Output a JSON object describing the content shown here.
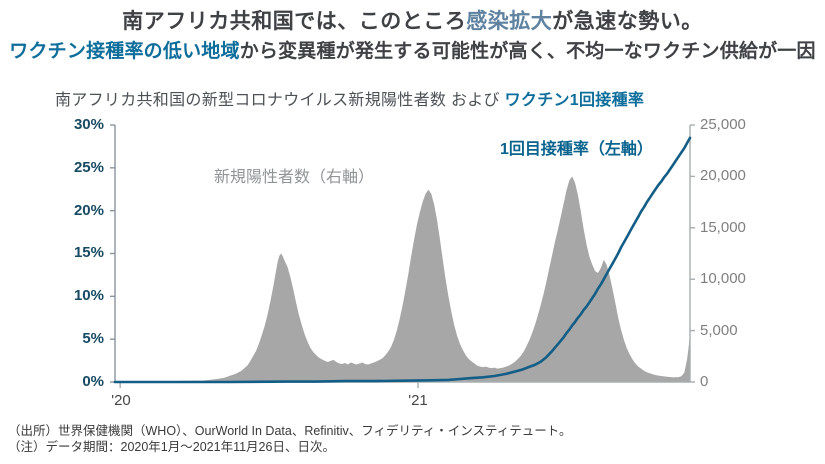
{
  "headline1": {
    "pre": "南アフリカ共和国では、このところ",
    "highlight": "感染拡大",
    "post": "が急速な勢い。"
  },
  "headline2": {
    "highlight": "ワクチン接種率の低い地域",
    "post": "から変異種が発生する可能性が高く、不均一なワクチン供給が一因"
  },
  "chart": {
    "title_main": "南アフリカ共和国の新型コロナウイルス新規陽性者数 および ",
    "title_highlight": "ワクチン1回接種率",
    "annotation_cases": "新規陽性者数（右軸）",
    "annotation_vaccine": "1回目接種率（左軸）"
  },
  "chart_data": {
    "type": "combo",
    "title": "南アフリカ共和国の新型コロナウイルス新規陽性者数 および ワクチン1回接種率",
    "x_note": "t=0 は2020年1月、t=1 は2021年11月26日（日次データ）",
    "x": {
      "ticks": [
        {
          "t": 0.009,
          "label": "'20"
        },
        {
          "t": 0.527,
          "label": "'21"
        }
      ]
    },
    "left_axis": {
      "min": 0,
      "max": 30,
      "ticks": [
        "30%",
        "25%",
        "20%",
        "15%",
        "10%",
        "5%",
        "0%"
      ]
    },
    "right_axis": {
      "min": 0,
      "max": 25000,
      "ticks": [
        "25,000",
        "20,000",
        "15,000",
        "10,000",
        "5,000",
        "0"
      ]
    },
    "colors": {
      "area": "#A7A7A7",
      "line": "#135E86",
      "left_axis": "#8A959E",
      "right_axis": "#A9ADB0",
      "baseline": "#A9ADB0"
    },
    "series": [
      {
        "name": "新規陽性者数（右軸）",
        "type": "area",
        "axis": "right",
        "color": "#A7A7A7",
        "points": [
          [
            0,
            0
          ],
          [
            0.02,
            0
          ],
          [
            0.04,
            0
          ],
          [
            0.06,
            10
          ],
          [
            0.08,
            30
          ],
          [
            0.1,
            60
          ],
          [
            0.11,
            90
          ],
          [
            0.12,
            130
          ],
          [
            0.13,
            110
          ],
          [
            0.14,
            150
          ],
          [
            0.15,
            130
          ],
          [
            0.16,
            180
          ],
          [
            0.17,
            240
          ],
          [
            0.18,
            320
          ],
          [
            0.19,
            420
          ],
          [
            0.2,
            600
          ],
          [
            0.21,
            800
          ],
          [
            0.215,
            950
          ],
          [
            0.22,
            1100
          ],
          [
            0.225,
            1350
          ],
          [
            0.23,
            1600
          ],
          [
            0.235,
            2000
          ],
          [
            0.24,
            2500
          ],
          [
            0.245,
            3000
          ],
          [
            0.25,
            3700
          ],
          [
            0.255,
            4500
          ],
          [
            0.26,
            5400
          ],
          [
            0.265,
            6500
          ],
          [
            0.27,
            7800
          ],
          [
            0.275,
            9200
          ],
          [
            0.28,
            10800
          ],
          [
            0.283,
            11700
          ],
          [
            0.286,
            12300
          ],
          [
            0.289,
            12500
          ],
          [
            0.292,
            12200
          ],
          [
            0.295,
            11800
          ],
          [
            0.3,
            11200
          ],
          [
            0.305,
            10200
          ],
          [
            0.31,
            9000
          ],
          [
            0.315,
            7700
          ],
          [
            0.32,
            6500
          ],
          [
            0.325,
            5500
          ],
          [
            0.33,
            4600
          ],
          [
            0.335,
            3900
          ],
          [
            0.34,
            3300
          ],
          [
            0.345,
            2900
          ],
          [
            0.35,
            2600
          ],
          [
            0.355,
            2350
          ],
          [
            0.36,
            2200
          ],
          [
            0.365,
            2050
          ],
          [
            0.37,
            1950
          ],
          [
            0.375,
            2050
          ],
          [
            0.38,
            2150
          ],
          [
            0.385,
            1950
          ],
          [
            0.39,
            1800
          ],
          [
            0.395,
            1750
          ],
          [
            0.4,
            1850
          ],
          [
            0.405,
            1700
          ],
          [
            0.41,
            1900
          ],
          [
            0.415,
            1800
          ],
          [
            0.42,
            1700
          ],
          [
            0.425,
            1800
          ],
          [
            0.43,
            1900
          ],
          [
            0.435,
            1750
          ],
          [
            0.44,
            1700
          ],
          [
            0.445,
            1800
          ],
          [
            0.45,
            1900
          ],
          [
            0.455,
            2000
          ],
          [
            0.46,
            2150
          ],
          [
            0.465,
            2300
          ],
          [
            0.47,
            2600
          ],
          [
            0.475,
            2950
          ],
          [
            0.48,
            3400
          ],
          [
            0.485,
            4100
          ],
          [
            0.49,
            5000
          ],
          [
            0.495,
            6100
          ],
          [
            0.5,
            7400
          ],
          [
            0.505,
            8900
          ],
          [
            0.51,
            10500
          ],
          [
            0.515,
            12200
          ],
          [
            0.52,
            13800
          ],
          [
            0.525,
            15300
          ],
          [
            0.53,
            16500
          ],
          [
            0.535,
            17500
          ],
          [
            0.54,
            18300
          ],
          [
            0.545,
            18700
          ],
          [
            0.55,
            18300
          ],
          [
            0.555,
            17300
          ],
          [
            0.56,
            15800
          ],
          [
            0.565,
            13900
          ],
          [
            0.57,
            11900
          ],
          [
            0.575,
            10000
          ],
          [
            0.58,
            8300
          ],
          [
            0.585,
            6800
          ],
          [
            0.59,
            5500
          ],
          [
            0.595,
            4500
          ],
          [
            0.6,
            3700
          ],
          [
            0.605,
            3100
          ],
          [
            0.61,
            2600
          ],
          [
            0.615,
            2250
          ],
          [
            0.62,
            2000
          ],
          [
            0.625,
            1800
          ],
          [
            0.63,
            1600
          ],
          [
            0.635,
            1500
          ],
          [
            0.64,
            1450
          ],
          [
            0.645,
            1500
          ],
          [
            0.65,
            1400
          ],
          [
            0.655,
            1350
          ],
          [
            0.66,
            1400
          ],
          [
            0.665,
            1300
          ],
          [
            0.67,
            1350
          ],
          [
            0.675,
            1400
          ],
          [
            0.68,
            1500
          ],
          [
            0.685,
            1600
          ],
          [
            0.69,
            1750
          ],
          [
            0.695,
            1950
          ],
          [
            0.7,
            2200
          ],
          [
            0.705,
            2500
          ],
          [
            0.71,
            2900
          ],
          [
            0.715,
            3400
          ],
          [
            0.72,
            4000
          ],
          [
            0.725,
            4700
          ],
          [
            0.73,
            5500
          ],
          [
            0.735,
            6400
          ],
          [
            0.74,
            7400
          ],
          [
            0.745,
            8500
          ],
          [
            0.75,
            9700
          ],
          [
            0.755,
            11000
          ],
          [
            0.76,
            12300
          ],
          [
            0.765,
            13600
          ],
          [
            0.77,
            14800
          ],
          [
            0.775,
            16000
          ],
          [
            0.78,
            17300
          ],
          [
            0.785,
            18600
          ],
          [
            0.79,
            19600
          ],
          [
            0.795,
            20000
          ],
          [
            0.8,
            19400
          ],
          [
            0.805,
            18200
          ],
          [
            0.81,
            16600
          ],
          [
            0.815,
            14900
          ],
          [
            0.82,
            13400
          ],
          [
            0.825,
            12200
          ],
          [
            0.83,
            11400
          ],
          [
            0.835,
            10800
          ],
          [
            0.84,
            10600
          ],
          [
            0.845,
            11100
          ],
          [
            0.85,
            11900
          ],
          [
            0.855,
            11400
          ],
          [
            0.86,
            10400
          ],
          [
            0.865,
            9100
          ],
          [
            0.87,
            7700
          ],
          [
            0.875,
            6300
          ],
          [
            0.88,
            5100
          ],
          [
            0.885,
            4100
          ],
          [
            0.89,
            3300
          ],
          [
            0.895,
            2700
          ],
          [
            0.9,
            2200
          ],
          [
            0.905,
            1800
          ],
          [
            0.91,
            1500
          ],
          [
            0.915,
            1300
          ],
          [
            0.92,
            1100
          ],
          [
            0.925,
            950
          ],
          [
            0.93,
            850
          ],
          [
            0.935,
            750
          ],
          [
            0.94,
            680
          ],
          [
            0.945,
            620
          ],
          [
            0.95,
            580
          ],
          [
            0.955,
            540
          ],
          [
            0.96,
            510
          ],
          [
            0.965,
            490
          ],
          [
            0.97,
            470
          ],
          [
            0.975,
            460
          ],
          [
            0.98,
            480
          ],
          [
            0.985,
            560
          ],
          [
            0.99,
            900
          ],
          [
            0.995,
            2200
          ],
          [
            1,
            4500
          ]
        ]
      },
      {
        "name": "1回目接種率（左軸）",
        "type": "line",
        "axis": "left",
        "color": "#135E86",
        "points": [
          [
            0,
            0
          ],
          [
            0.1,
            0
          ],
          [
            0.2,
            0
          ],
          [
            0.3,
            0.05
          ],
          [
            0.35,
            0.05
          ],
          [
            0.4,
            0.1
          ],
          [
            0.45,
            0.1
          ],
          [
            0.5,
            0.15
          ],
          [
            0.55,
            0.2
          ],
          [
            0.58,
            0.25
          ],
          [
            0.6,
            0.35
          ],
          [
            0.62,
            0.45
          ],
          [
            0.64,
            0.55
          ],
          [
            0.66,
            0.7
          ],
          [
            0.68,
            0.95
          ],
          [
            0.7,
            1.3
          ],
          [
            0.71,
            1.5
          ],
          [
            0.72,
            1.75
          ],
          [
            0.73,
            2.0
          ],
          [
            0.74,
            2.35
          ],
          [
            0.75,
            2.9
          ],
          [
            0.76,
            3.6
          ],
          [
            0.765,
            4.0
          ],
          [
            0.77,
            4.4
          ],
          [
            0.775,
            4.8
          ],
          [
            0.78,
            5.2
          ],
          [
            0.785,
            5.7
          ],
          [
            0.79,
            6.1
          ],
          [
            0.795,
            6.6
          ],
          [
            0.8,
            7.0
          ],
          [
            0.805,
            7.5
          ],
          [
            0.81,
            7.9
          ],
          [
            0.815,
            8.4
          ],
          [
            0.82,
            8.8
          ],
          [
            0.825,
            9.3
          ],
          [
            0.83,
            9.8
          ],
          [
            0.835,
            10.3
          ],
          [
            0.84,
            10.9
          ],
          [
            0.845,
            11.4
          ],
          [
            0.85,
            12.0
          ],
          [
            0.855,
            12.6
          ],
          [
            0.86,
            13.2
          ],
          [
            0.865,
            13.8
          ],
          [
            0.87,
            14.4
          ],
          [
            0.875,
            15.0
          ],
          [
            0.88,
            15.7
          ],
          [
            0.885,
            16.3
          ],
          [
            0.89,
            16.9
          ],
          [
            0.895,
            17.5
          ],
          [
            0.9,
            18.1
          ],
          [
            0.905,
            18.7
          ],
          [
            0.91,
            19.3
          ],
          [
            0.915,
            19.9
          ],
          [
            0.92,
            20.4
          ],
          [
            0.925,
            21.0
          ],
          [
            0.93,
            21.5
          ],
          [
            0.935,
            22.0
          ],
          [
            0.94,
            22.5
          ],
          [
            0.945,
            23.0
          ],
          [
            0.95,
            23.4
          ],
          [
            0.955,
            23.9
          ],
          [
            0.96,
            24.3
          ],
          [
            0.965,
            24.8
          ],
          [
            0.97,
            25.3
          ],
          [
            0.975,
            25.8
          ],
          [
            0.98,
            26.3
          ],
          [
            0.985,
            26.8
          ],
          [
            0.99,
            27.3
          ],
          [
            0.995,
            27.9
          ],
          [
            1,
            28.5
          ]
        ]
      }
    ]
  },
  "footer": {
    "source": "（出所）世界保健機関（WHO）、OurWorld In Data、Refinitiv、フィデリティ・インスティテュート。",
    "note": "（注）データ期間：2020年1月～2021年11月26日、日次。"
  }
}
